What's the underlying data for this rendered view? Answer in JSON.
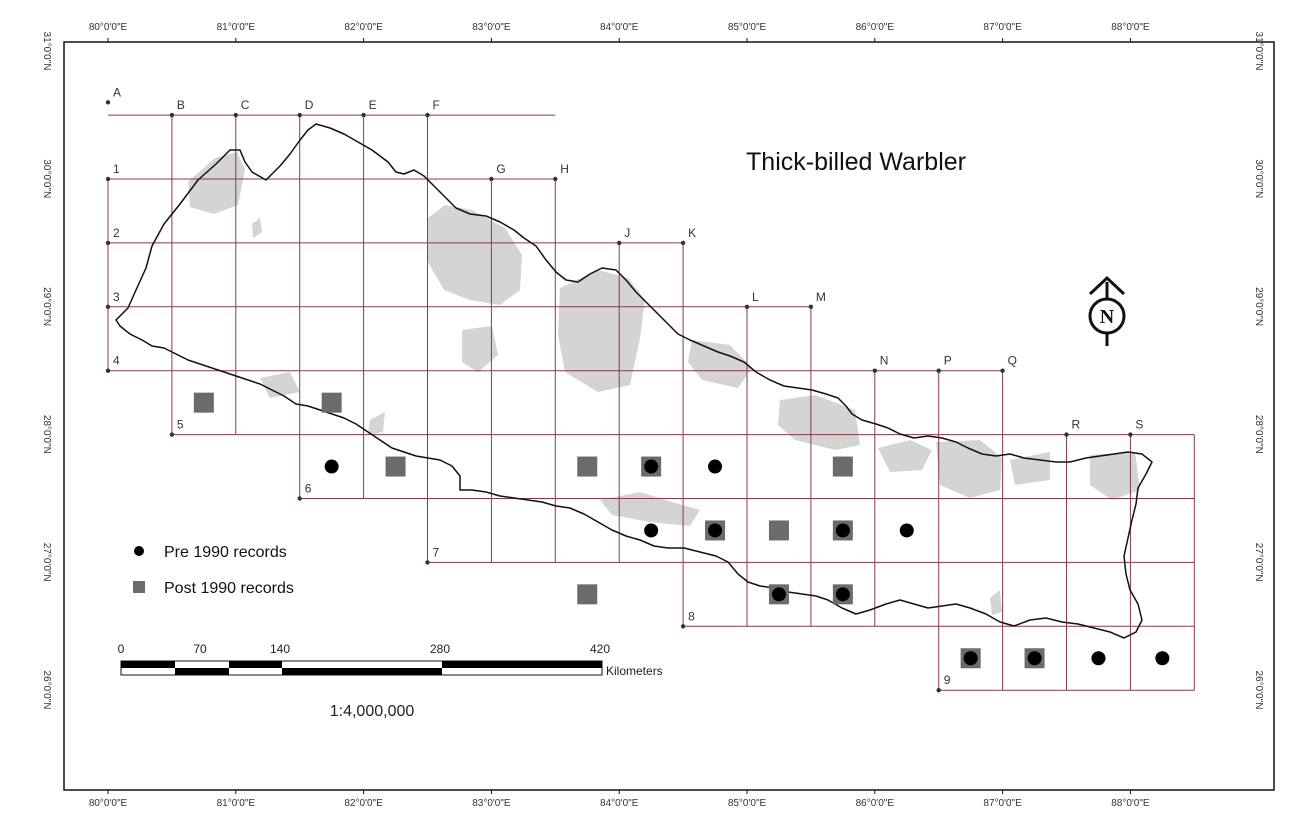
{
  "map": {
    "title": "Thick-billed Warbler",
    "top_left_label": "",
    "lon_labels": [
      "80°0'0\"E",
      "81°0'0\"E",
      "82°0'0\"E",
      "83°0'0\"E",
      "84°0'0\"E",
      "85°0'0\"E",
      "86°0'0\"E",
      "87°0'0\"E",
      "88°0'0\"E"
    ],
    "lat_labels": [
      "31°0'0\"N",
      "30°0'0\"N",
      "29°0'0\"N",
      "28°0'0\"N",
      "27°0'0\"N",
      "26°0'0\"N"
    ],
    "col_letters": [
      "A",
      "B",
      "C",
      "D",
      "E",
      "F",
      "G",
      "H",
      "J",
      "K",
      "L",
      "M",
      "N",
      "P",
      "Q",
      "R",
      "S"
    ],
    "row_numbers": [
      "1",
      "2",
      "3",
      "4",
      "5",
      "6",
      "7",
      "8",
      "9"
    ],
    "colors": {
      "grid": "#8a3a4a",
      "border": "#111111",
      "highland": "#d4d4d4",
      "pre_marker": "#000000",
      "post_marker": "#6b6b6b"
    },
    "records": {
      "pre_1990": [
        {
          "cell": "D5"
        },
        {
          "cell": "J5"
        },
        {
          "cell": "K5"
        },
        {
          "cell": "J6"
        },
        {
          "cell": "K6"
        },
        {
          "cell": "M6"
        },
        {
          "cell": "N6"
        },
        {
          "cell": "L7"
        },
        {
          "cell": "M7"
        },
        {
          "cell": "P8"
        },
        {
          "cell": "Q8"
        },
        {
          "cell": "R8"
        },
        {
          "cell": "S8"
        }
      ],
      "post_1990": [
        {
          "cell": "B4"
        },
        {
          "cell": "D4"
        },
        {
          "cell": "E5"
        },
        {
          "cell": "H5"
        },
        {
          "cell": "J5"
        },
        {
          "cell": "M5"
        },
        {
          "cell": "K6"
        },
        {
          "cell": "L6"
        },
        {
          "cell": "M6"
        },
        {
          "cell": "H7"
        },
        {
          "cell": "L7"
        },
        {
          "cell": "M7"
        },
        {
          "cell": "P8"
        },
        {
          "cell": "Q8"
        }
      ]
    }
  },
  "legend": {
    "pre_label": "Pre 1990 records",
    "post_label": "Post 1990 records"
  },
  "scale_bar": {
    "ticks": [
      "0",
      "70",
      "140",
      "280",
      "420"
    ],
    "unit": "Kilometers",
    "ratio": "1:4,000,000"
  },
  "north_arrow": {
    "letter": "N"
  }
}
